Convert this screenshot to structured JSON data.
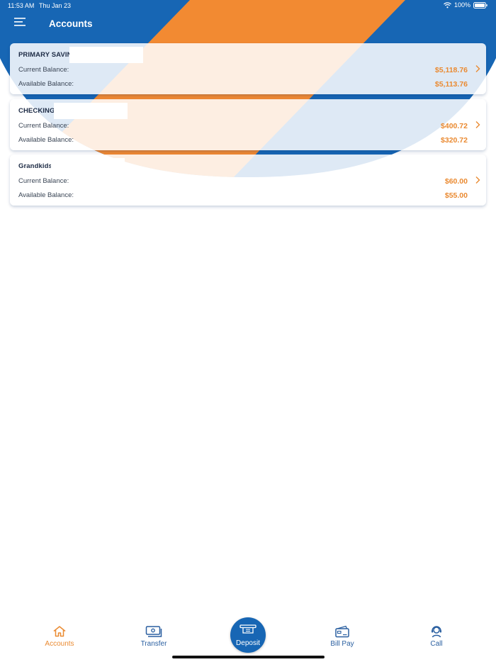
{
  "status_bar": {
    "time": "11:53 AM",
    "date": "Thu Jan 23",
    "battery": "100%"
  },
  "header": {
    "title": "Accounts",
    "menu_icon": "hamburger-menu-icon"
  },
  "accounts": [
    {
      "name": "PRIMARY SAVIN",
      "current_label": "Current Balance:",
      "current_balance": "$5,118.76",
      "available_label": "Available Balance:",
      "available_balance": "$5,113.76"
    },
    {
      "name": "CHECKING",
      "current_label": "Current Balance:",
      "current_balance": "$400.72",
      "available_label": "Available Balance:",
      "available_balance": "$320.72"
    },
    {
      "name": "Grandkids",
      "current_label": "Current Balance:",
      "current_balance": "$60.00",
      "available_label": "Available Balance:",
      "available_balance": "$55.00"
    }
  ],
  "tabs": {
    "accounts": {
      "label": "Accounts",
      "icon": "home-icon"
    },
    "transfer": {
      "label": "Transfer",
      "icon": "money-transfer-icon"
    },
    "deposit": {
      "label": "Deposit",
      "icon": "check-deposit-icon"
    },
    "bill_pay": {
      "label": "Bill Pay",
      "icon": "credit-card-icon"
    },
    "call": {
      "label": "Call",
      "icon": "headset-icon"
    }
  },
  "colors": {
    "brand_blue": "#1766b4",
    "brand_orange": "#f28a32",
    "balance_orange": "#ea8a31",
    "tab_blue": "#2a5fa0"
  }
}
